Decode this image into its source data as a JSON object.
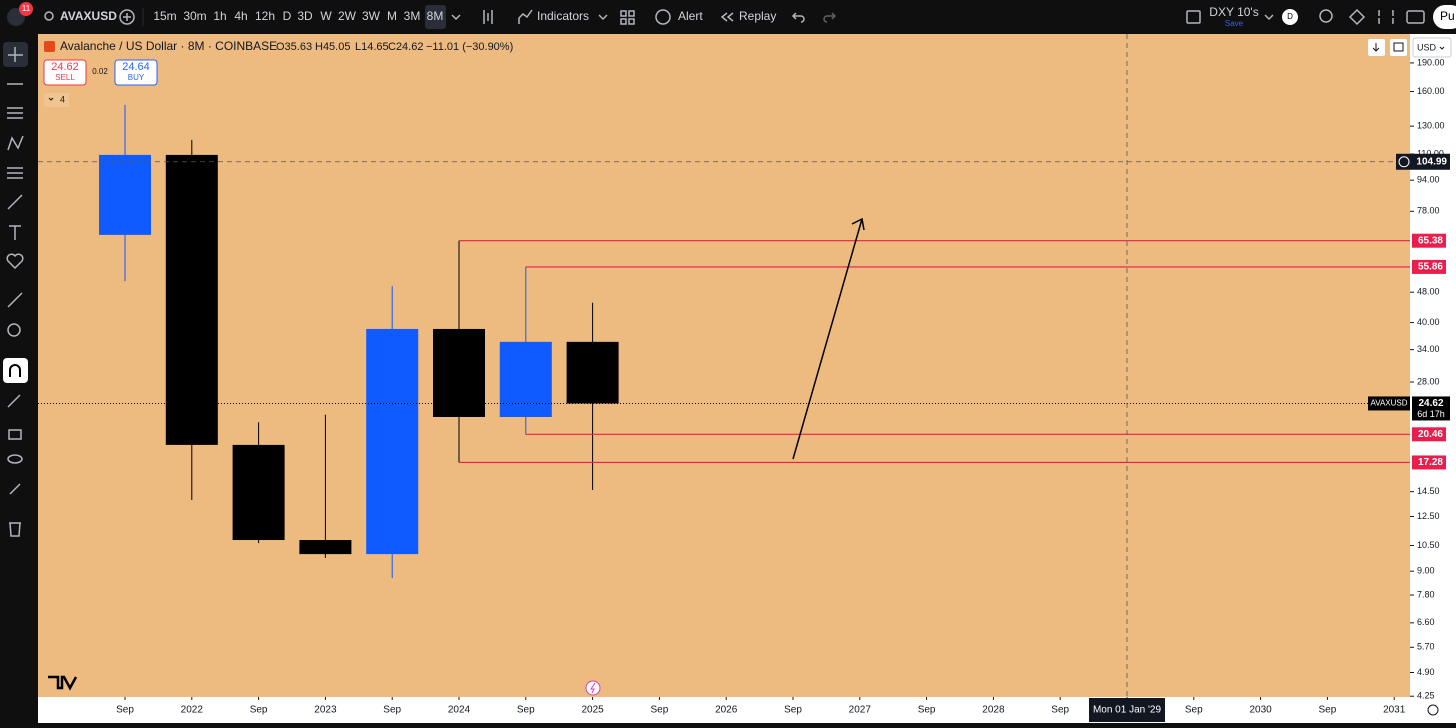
{
  "toolbar": {
    "badge": "11",
    "symbol": "AVAXUSD",
    "intervals": [
      "15m",
      "30m",
      "1h",
      "4h",
      "12h",
      "D",
      "3D",
      "W",
      "2W",
      "3W",
      "M",
      "3M",
      "8M"
    ],
    "indicators": "Indicators",
    "alert": "Alert",
    "replay": "Replay",
    "layout_name": "DXY 10's",
    "save": "Save",
    "avatar": "D",
    "publish": "Pu"
  },
  "legend": {
    "title": "Avalanche / US Dollar · 8M · COINBASE",
    "ohlc": [
      "O35.63",
      "H45.05",
      "L14.65",
      "C24.62"
    ],
    "change": "−11.01 (−30.90%)",
    "sell_price": "24.62",
    "sell": "SELL",
    "spread": "0.02",
    "buy_price": "24.64",
    "buy": "BUY",
    "indicator_count": "4"
  },
  "price_axis": {
    "currency": "USD"
  },
  "chart_data": {
    "type": "candlestick",
    "log_scale": true,
    "background": "#edba7f",
    "up_color": "#0f5bff",
    "down_color": "#000000",
    "level_color": "#e91e4c",
    "categories": [
      "Sep",
      "2022",
      "Sep",
      "2023",
      "Sep",
      "2024",
      "Sep",
      "2025",
      "Sep",
      "2026",
      "Sep",
      "2027",
      "Sep",
      "2028",
      "Sep",
      "Mon 01 Jan '29",
      "Sep",
      "2030",
      "Sep",
      "2031"
    ],
    "open": [
      67.7,
      109.4,
      19.2,
      10.85,
      9.97,
      38.5,
      22.7,
      35.63,
      null,
      null,
      null,
      null,
      null,
      null,
      null,
      null,
      null,
      null,
      null,
      null
    ],
    "high": [
      147.7,
      119.7,
      22.0,
      23.0,
      49.8,
      65.38,
      55.86,
      45.05,
      null,
      null,
      null,
      null,
      null,
      null,
      null,
      null,
      null,
      null,
      null,
      null
    ],
    "low": [
      51.3,
      13.8,
      10.65,
      9.74,
      8.64,
      17.28,
      20.46,
      14.65,
      null,
      null,
      null,
      null,
      null,
      null,
      null,
      null,
      null,
      null,
      null,
      null
    ],
    "close": [
      109.4,
      19.2,
      10.85,
      9.97,
      38.5,
      22.7,
      35.63,
      24.62,
      null,
      null,
      null,
      null,
      null,
      null,
      null,
      null,
      null,
      null,
      null,
      null
    ],
    "ylim": [
      4.23,
      226
    ],
    "yticks": [
      {
        "value": 190,
        "label": "190.00"
      },
      {
        "value": 160,
        "label": "160.00"
      },
      {
        "value": 130,
        "label": "130.00"
      },
      {
        "value": 110,
        "label": "110.00"
      },
      {
        "value": 94,
        "label": "94.00"
      },
      {
        "value": 78,
        "label": "78.00"
      },
      {
        "value": 48,
        "label": "48.00"
      },
      {
        "value": 40,
        "label": "40.00"
      },
      {
        "value": 34,
        "label": "34.00"
      },
      {
        "value": 28,
        "label": "28.00"
      },
      {
        "value": 14.5,
        "label": "14.50"
      },
      {
        "value": 12.5,
        "label": "12.50"
      },
      {
        "value": 10.5,
        "label": "10.50"
      },
      {
        "value": 9,
        "label": "9.00"
      },
      {
        "value": 7.8,
        "label": "7.80"
      },
      {
        "value": 6.6,
        "label": "6.60"
      },
      {
        "value": 5.7,
        "label": "5.70"
      },
      {
        "value": 4.9,
        "label": "4.90"
      },
      {
        "value": 4.25,
        "label": "4.25"
      }
    ],
    "levels": [
      65.38,
      55.86,
      20.46,
      17.28
    ],
    "crosshair_price": 104.99,
    "last_price": 24.62,
    "last_price_symbol": "AVAXUSD",
    "countdown": "6d 17h"
  }
}
